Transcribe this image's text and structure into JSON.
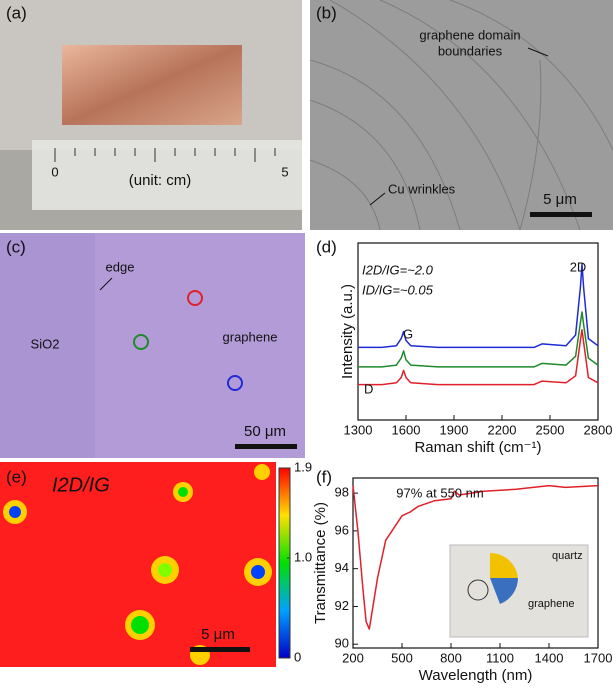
{
  "panels": {
    "a": {
      "label": "(a)",
      "caption": "(unit: cm)",
      "ruler_labels": [
        "0",
        "5"
      ]
    },
    "b": {
      "label": "(b)",
      "annotations": [
        "graphene domain",
        "boundaries",
        "Cu wrinkles"
      ],
      "scale_bar": "5 μm"
    },
    "c": {
      "label": "(c)",
      "annotations": [
        "edge",
        "SiO2",
        "graphene"
      ],
      "scale_bar": "50 μm"
    },
    "d": {
      "label": "(d)"
    },
    "e": {
      "label": "(e)",
      "title": "I2D/IG",
      "scale_bar": "5 μm",
      "colorbar": {
        "lim": [
          0,
          1.9
        ],
        "ticks": [
          1.9,
          {
            "value": 1,
            "label": "1.0"
          },
          0
        ]
      }
    },
    "f": {
      "label": "(f)",
      "inset": [
        "quartz",
        "graphene"
      ]
    }
  },
  "chart_data": [
    {
      "type": "line",
      "x_label": "Raman shift (cm⁻¹)",
      "y_label": "Intensity (a.u.)",
      "annotations": [
        "I2D/IG=~2.0",
        "ID/IG=~0.05",
        "D",
        "G",
        "2D"
      ],
      "x": [
        1300,
        1450,
        1540,
        1570,
        1585,
        1600,
        1630,
        1800,
        2100,
        2400,
        2450,
        2600,
        2660,
        2690,
        2700,
        2710,
        2740,
        2800
      ],
      "series": [
        {
          "color": "#1f2bd6",
          "values": [
            4.1,
            4.1,
            4.2,
            4.6,
            5.0,
            4.5,
            4.2,
            4.1,
            4.1,
            4.1,
            4.3,
            4.2,
            4.8,
            7.5,
            8.8,
            7.5,
            4.6,
            4.2
          ]
        },
        {
          "color": "#1f8a2a",
          "values": [
            3.0,
            3.0,
            3.1,
            3.5,
            3.9,
            3.4,
            3.1,
            3.0,
            3.0,
            3.0,
            3.2,
            3.1,
            3.6,
            5.5,
            6.1,
            5.4,
            3.5,
            3.1
          ]
        },
        {
          "color": "#e0202a",
          "values": [
            2.0,
            2.0,
            2.1,
            2.4,
            2.8,
            2.4,
            2.1,
            2.0,
            2.0,
            2.0,
            2.2,
            2.1,
            2.5,
            4.5,
            5.1,
            4.4,
            2.4,
            2.1
          ]
        }
      ],
      "xlim": [
        1300,
        2800
      ],
      "xticks": [
        1300,
        1600,
        1900,
        2200,
        2500,
        2800
      ],
      "ylim": [
        0,
        10
      ]
    },
    {
      "type": "line",
      "x_label": "Wavelength (nm)",
      "y_label": "Transmittance (%)",
      "annotations": [
        "97% at 550 nm"
      ],
      "x": [
        200,
        230,
        260,
        280,
        300,
        350,
        400,
        500,
        550,
        600,
        700,
        800,
        820,
        850,
        1000,
        1200,
        1400,
        1500,
        1700
      ],
      "series": [
        {
          "color": "#e0202a",
          "values": [
            98.4,
            96.0,
            93.0,
            91.2,
            90.8,
            93.5,
            95.5,
            96.8,
            97.0,
            97.3,
            97.6,
            97.7,
            98.1,
            97.9,
            98.1,
            98.2,
            98.4,
            98.3,
            98.4
          ]
        }
      ],
      "xlim": [
        200,
        1700
      ],
      "xticks": [
        200,
        500,
        800,
        1100,
        1400,
        1700
      ],
      "ylim": [
        89.8,
        98.8
      ],
      "yticks": [
        90,
        92,
        94,
        96,
        98
      ]
    }
  ]
}
